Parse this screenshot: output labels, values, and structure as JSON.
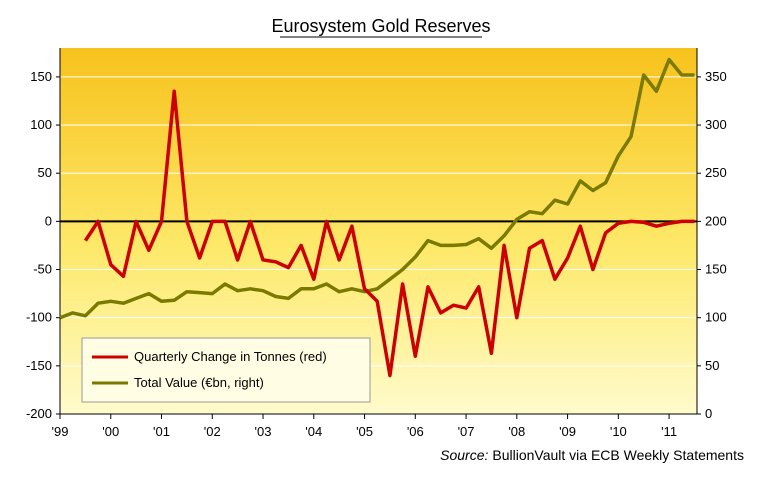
{
  "chart_data": {
    "type": "line",
    "title": "Eurosystem  Gold Reserves",
    "x_ticks": [
      "'99",
      "'00",
      "'01",
      "'02",
      "'03",
      "'04",
      "'05",
      "'06",
      "'07",
      "'08",
      "'09",
      "'10",
      "'11"
    ],
    "x_range": [
      1999.0,
      2011.55
    ],
    "left_axis": {
      "range": [
        -200,
        180
      ],
      "ticks": [
        -200,
        -150,
        -100,
        -50,
        0,
        50,
        100,
        150
      ]
    },
    "right_axis": {
      "range": [
        0,
        380
      ],
      "ticks": [
        0,
        50,
        100,
        150,
        200,
        250,
        300,
        350
      ]
    },
    "series": [
      {
        "name": "Quarterly Change in Tonnes (red)",
        "axis": "left",
        "color": "#cc0000",
        "points": [
          [
            1999.5,
            -20
          ],
          [
            1999.75,
            0
          ],
          [
            2000.0,
            -45
          ],
          [
            2000.25,
            -57
          ],
          [
            2000.5,
            0
          ],
          [
            2000.75,
            -30
          ],
          [
            2001.0,
            0
          ],
          [
            2001.25,
            135
          ],
          [
            2001.5,
            0
          ],
          [
            2001.75,
            -38
          ],
          [
            2002.0,
            0
          ],
          [
            2002.25,
            0
          ],
          [
            2002.5,
            -40
          ],
          [
            2002.75,
            0
          ],
          [
            2003.0,
            -40
          ],
          [
            2003.25,
            -42
          ],
          [
            2003.5,
            -48
          ],
          [
            2003.75,
            -25
          ],
          [
            2004.0,
            -60
          ],
          [
            2004.25,
            0
          ],
          [
            2004.5,
            -40
          ],
          [
            2004.75,
            -5
          ],
          [
            2005.0,
            -70
          ],
          [
            2005.25,
            -83
          ],
          [
            2005.5,
            -160
          ],
          [
            2005.75,
            -65
          ],
          [
            2006.0,
            -140
          ],
          [
            2006.25,
            -68
          ],
          [
            2006.5,
            -95
          ],
          [
            2006.75,
            -87
          ],
          [
            2007.0,
            -90
          ],
          [
            2007.25,
            -68
          ],
          [
            2007.5,
            -137
          ],
          [
            2007.75,
            -25
          ],
          [
            2008.0,
            -100
          ],
          [
            2008.25,
            -28
          ],
          [
            2008.5,
            -20
          ],
          [
            2008.75,
            -60
          ],
          [
            2009.0,
            -38
          ],
          [
            2009.25,
            -5
          ],
          [
            2009.5,
            -50
          ],
          [
            2009.75,
            -12
          ],
          [
            2010.0,
            -2
          ],
          [
            2010.25,
            0
          ],
          [
            2010.5,
            -1
          ],
          [
            2010.75,
            -5
          ],
          [
            2011.0,
            -2
          ],
          [
            2011.25,
            0
          ],
          [
            2011.5,
            0
          ]
        ]
      },
      {
        "name": "Total Value (€bn, right)",
        "axis": "right",
        "color": "#7a7a00",
        "points": [
          [
            1999.0,
            100
          ],
          [
            1999.25,
            105
          ],
          [
            1999.5,
            102
          ],
          [
            1999.75,
            115
          ],
          [
            2000.0,
            117
          ],
          [
            2000.25,
            115
          ],
          [
            2000.5,
            120
          ],
          [
            2000.75,
            125
          ],
          [
            2001.0,
            117
          ],
          [
            2001.25,
            118
          ],
          [
            2001.5,
            127
          ],
          [
            2001.75,
            126
          ],
          [
            2002.0,
            125
          ],
          [
            2002.25,
            135
          ],
          [
            2002.5,
            128
          ],
          [
            2002.75,
            130
          ],
          [
            2003.0,
            128
          ],
          [
            2003.25,
            122
          ],
          [
            2003.5,
            120
          ],
          [
            2003.75,
            130
          ],
          [
            2004.0,
            130
          ],
          [
            2004.25,
            135
          ],
          [
            2004.5,
            127
          ],
          [
            2004.75,
            130
          ],
          [
            2005.0,
            127
          ],
          [
            2005.25,
            130
          ],
          [
            2005.5,
            140
          ],
          [
            2005.75,
            150
          ],
          [
            2006.0,
            163
          ],
          [
            2006.25,
            180
          ],
          [
            2006.5,
            175
          ],
          [
            2006.75,
            175
          ],
          [
            2007.0,
            176
          ],
          [
            2007.25,
            182
          ],
          [
            2007.5,
            172
          ],
          [
            2007.75,
            185
          ],
          [
            2008.0,
            202
          ],
          [
            2008.25,
            210
          ],
          [
            2008.5,
            208
          ],
          [
            2008.75,
            222
          ],
          [
            2009.0,
            218
          ],
          [
            2009.25,
            242
          ],
          [
            2009.5,
            232
          ],
          [
            2009.75,
            240
          ],
          [
            2010.0,
            268
          ],
          [
            2010.25,
            288
          ],
          [
            2010.5,
            352
          ],
          [
            2010.75,
            335
          ],
          [
            2011.0,
            368
          ],
          [
            2011.25,
            352
          ],
          [
            2011.5,
            352
          ]
        ]
      }
    ],
    "legend": {
      "position": "bottom-left",
      "entries": [
        "Quarterly Change in Tonnes (red)",
        "Total Value (€bn, right)"
      ]
    },
    "source_label": "Source:",
    "source_text": "BullionVault via ECB Weekly Statements",
    "zero_line": true
  }
}
